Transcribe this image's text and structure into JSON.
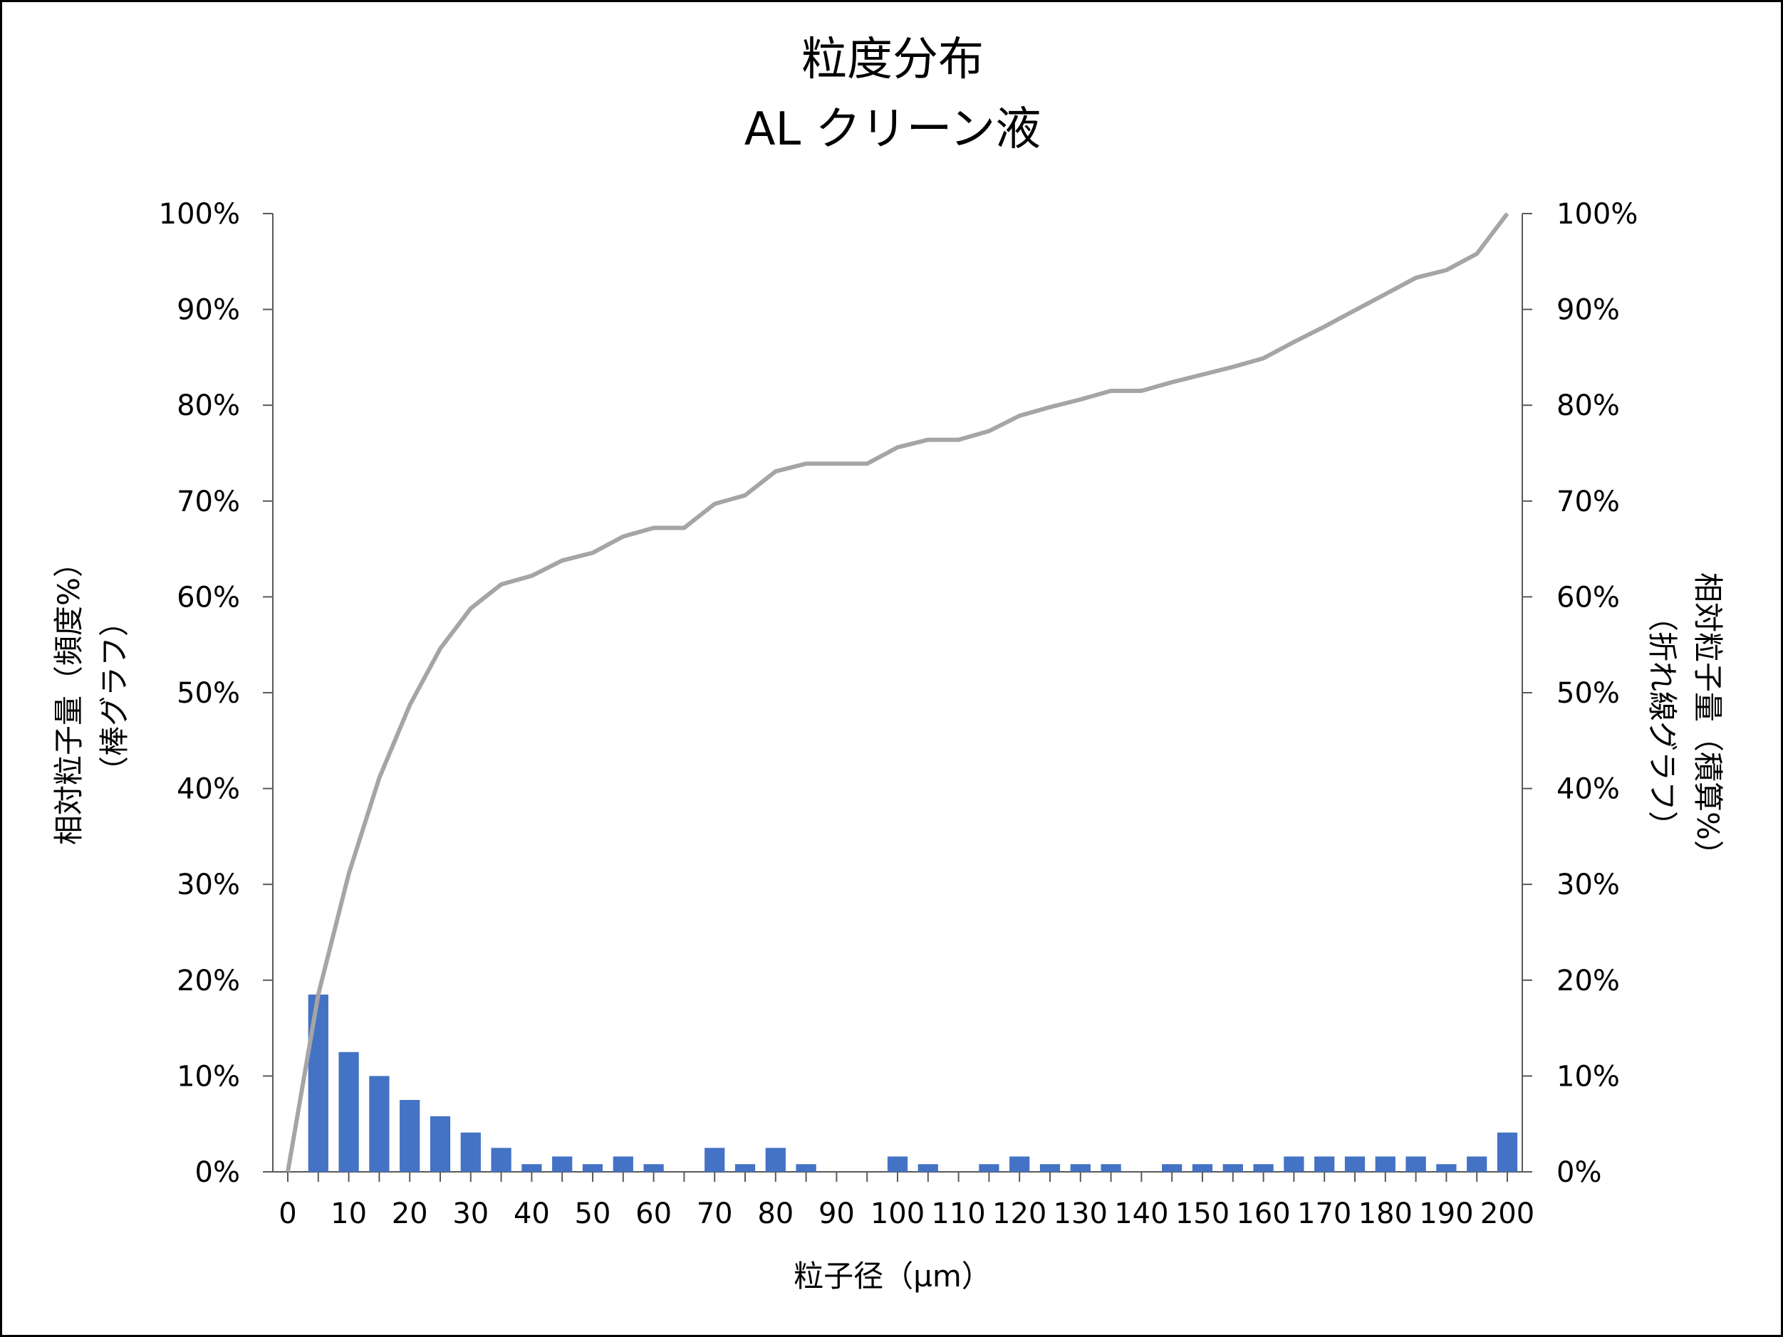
{
  "chart_data": {
    "type": "bar+line",
    "title": "粒度分布",
    "subtitle": "AL クリーン液",
    "xlabel": "粒子径（µm）",
    "ylabel_left": [
      "相対粒子量（頻度%）",
      "（棒グラフ）"
    ],
    "ylabel_right": [
      "相対粒子量（積算%）",
      "（折れ線グラフ）"
    ],
    "x_ticks": [
      "0",
      "10",
      "20",
      "30",
      "40",
      "50",
      "60",
      "70",
      "80",
      "90",
      "100",
      "110",
      "120",
      "130",
      "140",
      "150",
      "160",
      "170",
      "180",
      "190",
      "200"
    ],
    "y_ticks": [
      "0%",
      "10%",
      "20%",
      "30%",
      "40%",
      "50%",
      "60%",
      "70%",
      "80%",
      "90%",
      "100%"
    ],
    "ylim": [
      0,
      100
    ],
    "xlim": [
      0,
      200
    ],
    "grid": false,
    "series": [
      {
        "type": "bar",
        "axis": "left",
        "color": "#4472C4",
        "x": [
          5,
          10,
          15,
          20,
          25,
          30,
          35,
          40,
          45,
          50,
          55,
          60,
          65,
          70,
          75,
          80,
          85,
          90,
          95,
          100,
          105,
          110,
          115,
          120,
          125,
          130,
          135,
          140,
          145,
          150,
          155,
          160,
          165,
          170,
          175,
          180,
          185,
          190,
          195,
          200
        ],
        "values": [
          18.5,
          12.5,
          10.0,
          7.5,
          5.8,
          4.1,
          2.5,
          0.8,
          1.6,
          0.8,
          1.6,
          0.8,
          0,
          2.5,
          0.8,
          2.5,
          0.8,
          0,
          0,
          1.6,
          0.8,
          0,
          0.8,
          1.6,
          0.8,
          0.8,
          0.8,
          0,
          0.8,
          0.8,
          0.8,
          0.8,
          1.6,
          1.6,
          1.6,
          1.6,
          1.6,
          0.8,
          1.6,
          4.1
        ]
      },
      {
        "type": "line",
        "axis": "right",
        "color": "#A5A5A5",
        "x": [
          0,
          5,
          10,
          15,
          20,
          25,
          30,
          35,
          40,
          45,
          50,
          55,
          60,
          65,
          70,
          75,
          80,
          85,
          90,
          95,
          100,
          105,
          110,
          115,
          120,
          125,
          130,
          135,
          140,
          145,
          150,
          155,
          160,
          165,
          170,
          175,
          180,
          185,
          190,
          195,
          200
        ],
        "values": [
          0,
          18.5,
          31.1,
          41.1,
          48.7,
          54.6,
          58.8,
          61.3,
          62.2,
          63.8,
          64.6,
          66.3,
          67.2,
          67.2,
          69.7,
          70.6,
          73.1,
          73.9,
          73.9,
          73.9,
          75.6,
          76.4,
          76.4,
          77.3,
          78.9,
          79.8,
          80.6,
          81.5,
          81.5,
          82.4,
          83.2,
          84.0,
          84.9,
          86.6,
          88.2,
          89.9,
          91.6,
          93.3,
          94.1,
          95.8,
          100
        ]
      }
    ]
  }
}
